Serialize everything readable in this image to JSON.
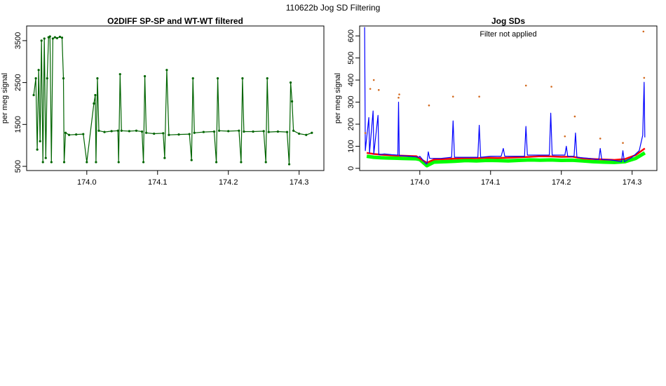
{
  "page": {
    "title": "110622b   Jog SD Filtering"
  },
  "chart_data": [
    {
      "type": "line",
      "title": "O2DIFF SP-SP and WT-WT filtered",
      "xlabel": "",
      "ylabel": "per meg signal",
      "xlim": [
        173.915,
        174.335
      ],
      "ylim": [
        400,
        3850
      ],
      "x_ticks": [
        174.0,
        174.1,
        174.2,
        174.3
      ],
      "y_ticks": [
        500,
        1500,
        2500,
        3500
      ],
      "grid": false,
      "series": [
        {
          "color": "#006400",
          "points": [
            [
              173.925,
              2200
            ],
            [
              173.928,
              2600
            ],
            [
              173.93,
              900
            ],
            [
              173.932,
              2800
            ],
            [
              173.934,
              1100
            ],
            [
              173.936,
              3500
            ],
            [
              173.938,
              600
            ],
            [
              173.94,
              3550
            ],
            [
              173.942,
              700
            ],
            [
              173.944,
              2600
            ],
            [
              173.946,
              3580
            ],
            [
              173.948,
              3600
            ],
            [
              173.95,
              600
            ],
            [
              173.952,
              3550
            ],
            [
              173.955,
              3580
            ],
            [
              173.958,
              3560
            ],
            [
              173.962,
              3590
            ],
            [
              173.965,
              3570
            ],
            [
              173.967,
              2600
            ],
            [
              173.968,
              600
            ],
            [
              173.97,
              1300
            ],
            [
              173.975,
              1250
            ],
            [
              173.985,
              1260
            ],
            [
              173.995,
              1270
            ],
            [
              174.0,
              600
            ],
            [
              174.01,
              2000
            ],
            [
              174.012,
              2200
            ],
            [
              174.013,
              600
            ],
            [
              174.015,
              2600
            ],
            [
              174.017,
              1350
            ],
            [
              174.025,
              1320
            ],
            [
              174.035,
              1340
            ],
            [
              174.044,
              1350
            ],
            [
              174.045,
              600
            ],
            [
              174.047,
              2700
            ],
            [
              174.049,
              1350
            ],
            [
              174.06,
              1340
            ],
            [
              174.07,
              1350
            ],
            [
              174.078,
              1330
            ],
            [
              174.08,
              600
            ],
            [
              174.082,
              2650
            ],
            [
              174.084,
              1300
            ],
            [
              174.095,
              1280
            ],
            [
              174.108,
              1290
            ],
            [
              174.11,
              700
            ],
            [
              174.113,
              2800
            ],
            [
              174.116,
              1250
            ],
            [
              174.13,
              1260
            ],
            [
              174.145,
              1270
            ],
            [
              174.148,
              650
            ],
            [
              174.15,
              2600
            ],
            [
              174.152,
              1300
            ],
            [
              174.165,
              1320
            ],
            [
              174.18,
              1330
            ],
            [
              174.183,
              600
            ],
            [
              174.185,
              2600
            ],
            [
              174.187,
              1350
            ],
            [
              174.2,
              1340
            ],
            [
              174.215,
              1350
            ],
            [
              174.218,
              600
            ],
            [
              174.22,
              2600
            ],
            [
              174.222,
              1330
            ],
            [
              174.235,
              1330
            ],
            [
              174.25,
              1340
            ],
            [
              174.253,
              600
            ],
            [
              174.255,
              2600
            ],
            [
              174.257,
              1320
            ],
            [
              174.27,
              1330
            ],
            [
              174.283,
              1320
            ],
            [
              174.286,
              550
            ],
            [
              174.288,
              2500
            ],
            [
              174.29,
              2050
            ],
            [
              174.292,
              1350
            ],
            [
              174.3,
              1280
            ],
            [
              174.31,
              1250
            ],
            [
              174.318,
              1300
            ]
          ]
        }
      ]
    },
    {
      "type": "line",
      "title": "Jog SDs",
      "subtitle": "Filter not applied",
      "xlabel": "",
      "ylabel": "per meg signal",
      "xlim": [
        173.915,
        174.335
      ],
      "ylim": [
        -10,
        645
      ],
      "x_ticks": [
        174.0,
        174.1,
        174.2,
        174.3
      ],
      "y_ticks": [
        0,
        100,
        200,
        300,
        400,
        500,
        600
      ],
      "grid": false,
      "series": [
        {
          "color": "#00ff00",
          "points": [
            [
              173.925,
              55
            ],
            [
              173.935,
              50
            ],
            [
              173.945,
              48
            ],
            [
              173.955,
              47
            ],
            [
              173.965,
              46
            ],
            [
              173.975,
              45
            ],
            [
              173.985,
              44
            ],
            [
              173.995,
              43
            ],
            [
              174.0,
              40
            ],
            [
              174.01,
              12
            ],
            [
              174.02,
              28
            ],
            [
              174.035,
              30
            ],
            [
              174.05,
              32
            ],
            [
              174.065,
              35
            ],
            [
              174.08,
              34
            ],
            [
              174.095,
              36
            ],
            [
              174.11,
              35
            ],
            [
              174.125,
              34
            ],
            [
              174.14,
              36
            ],
            [
              174.155,
              38
            ],
            [
              174.17,
              37
            ],
            [
              174.185,
              38
            ],
            [
              174.2,
              36
            ],
            [
              174.215,
              37
            ],
            [
              174.23,
              34
            ],
            [
              174.245,
              30
            ],
            [
              174.26,
              28
            ],
            [
              174.275,
              27
            ],
            [
              174.29,
              30
            ],
            [
              174.305,
              45
            ],
            [
              174.318,
              70
            ]
          ]
        },
        {
          "color": "#ff0000",
          "points": [
            [
              173.925,
              70
            ],
            [
              173.935,
              65
            ],
            [
              173.945,
              62
            ],
            [
              173.955,
              60
            ],
            [
              173.965,
              58
            ],
            [
              173.975,
              57
            ],
            [
              173.985,
              56
            ],
            [
              173.995,
              55
            ],
            [
              174.01,
              25
            ],
            [
              174.02,
              40
            ],
            [
              174.035,
              42
            ],
            [
              174.05,
              44
            ],
            [
              174.065,
              47
            ],
            [
              174.08,
              46
            ],
            [
              174.095,
              48
            ],
            [
              174.11,
              47
            ],
            [
              174.125,
              48
            ],
            [
              174.14,
              50
            ],
            [
              174.155,
              52
            ],
            [
              174.17,
              55
            ],
            [
              174.185,
              54
            ],
            [
              174.2,
              52
            ],
            [
              174.215,
              53
            ],
            [
              174.23,
              45
            ],
            [
              174.245,
              42
            ],
            [
              174.26,
              40
            ],
            [
              174.275,
              38
            ],
            [
              174.29,
              42
            ],
            [
              174.305,
              60
            ],
            [
              174.318,
              90
            ]
          ]
        },
        {
          "color": "#0000ff",
          "points": [
            [
              173.922,
              640
            ],
            [
              173.923,
              80
            ],
            [
              173.928,
              230
            ],
            [
              173.929,
              70
            ],
            [
              173.934,
              260
            ],
            [
              173.935,
              65
            ],
            [
              173.941,
              240
            ],
            [
              173.942,
              62
            ],
            [
              173.95,
              65
            ],
            [
              173.96,
              62
            ],
            [
              173.969,
              60
            ],
            [
              173.97,
              300
            ],
            [
              173.971,
              58
            ],
            [
              173.985,
              55
            ],
            [
              173.999,
              50
            ],
            [
              174.0,
              55
            ],
            [
              174.009,
              20
            ],
            [
              174.01,
              20
            ],
            [
              174.012,
              75
            ],
            [
              174.014,
              45
            ],
            [
              174.03,
              45
            ],
            [
              174.045,
              50
            ],
            [
              174.047,
              215
            ],
            [
              174.049,
              50
            ],
            [
              174.07,
              50
            ],
            [
              174.082,
              50
            ],
            [
              174.084,
              195
            ],
            [
              174.086,
              50
            ],
            [
              174.1,
              55
            ],
            [
              174.115,
              55
            ],
            [
              174.118,
              90
            ],
            [
              174.12,
              55
            ],
            [
              174.135,
              55
            ],
            [
              174.148,
              55
            ],
            [
              174.15,
              190
            ],
            [
              174.152,
              60
            ],
            [
              174.17,
              60
            ],
            [
              174.183,
              60
            ],
            [
              174.185,
              250
            ],
            [
              174.187,
              60
            ],
            [
              174.2,
              60
            ],
            [
              174.205,
              60
            ],
            [
              174.207,
              100
            ],
            [
              174.209,
              55
            ],
            [
              174.218,
              55
            ],
            [
              174.22,
              160
            ],
            [
              174.222,
              50
            ],
            [
              174.24,
              45
            ],
            [
              174.25,
              40
            ],
            [
              174.253,
              40
            ],
            [
              174.255,
              90
            ],
            [
              174.257,
              40
            ],
            [
              174.27,
              38
            ],
            [
              174.285,
              30
            ],
            [
              174.287,
              80
            ],
            [
              174.289,
              30
            ],
            [
              174.3,
              50
            ],
            [
              174.31,
              80
            ],
            [
              174.315,
              150
            ],
            [
              174.317,
              390
            ],
            [
              174.318,
              140
            ]
          ]
        },
        {
          "color": "#d2691e",
          "points": [
            [
              173.923,
              160
            ],
            [
              173.93,
              360
            ],
            [
              173.935,
              400
            ],
            [
              173.942,
              355
            ],
            [
              173.97,
              320
            ],
            [
              173.971,
              335
            ],
            [
              174.013,
              285
            ],
            [
              174.047,
              325
            ],
            [
              174.084,
              325
            ],
            [
              174.15,
              375
            ],
            [
              174.186,
              370
            ],
            [
              174.219,
              235
            ],
            [
              174.205,
              145
            ],
            [
              174.255,
              135
            ],
            [
              174.287,
              115
            ],
            [
              174.316,
              620
            ],
            [
              174.317,
              410
            ]
          ]
        }
      ]
    }
  ]
}
